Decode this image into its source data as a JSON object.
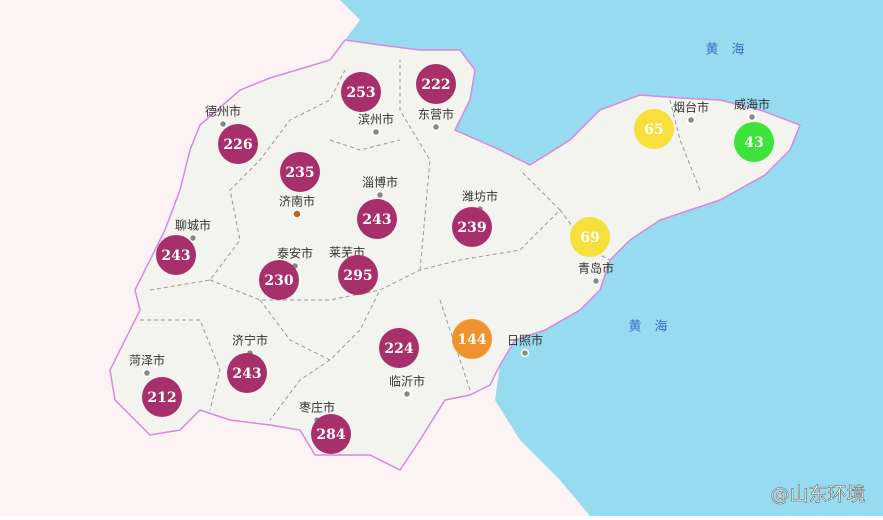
{
  "seas": [
    "黄　海",
    "黄　海"
  ],
  "cities": [
    "德州市",
    "滨州市",
    "东营市",
    "烟台市",
    "威海市",
    "淄博市",
    "济南市",
    "潍坊市",
    "聊城市",
    "泰安市",
    "莱芜市",
    "青岛市",
    "日照市",
    "济宁市",
    "菏泽市",
    "临沂市",
    "枣庄市"
  ],
  "markers": [
    {
      "value": 253,
      "color": "#a8306a"
    },
    {
      "value": 222,
      "color": "#a8306a"
    },
    {
      "value": 226,
      "color": "#a8306a"
    },
    {
      "value": 235,
      "color": "#a8306a"
    },
    {
      "value": 243,
      "color": "#a8306a"
    },
    {
      "value": 239,
      "color": "#a8306a"
    },
    {
      "value": 243,
      "color": "#a8306a"
    },
    {
      "value": 230,
      "color": "#a8306a"
    },
    {
      "value": 295,
      "color": "#a8306a"
    },
    {
      "value": 65,
      "color": "#f7e03c"
    },
    {
      "value": 43,
      "color": "#3ee23a"
    },
    {
      "value": 69,
      "color": "#f7e03c"
    },
    {
      "value": 144,
      "color": "#f0922e"
    },
    {
      "value": 224,
      "color": "#a8306a"
    },
    {
      "value": 243,
      "color": "#a8306a"
    },
    {
      "value": 212,
      "color": "#a8306a"
    },
    {
      "value": 284,
      "color": "#a8306a"
    }
  ],
  "watermark": "@山东环境"
}
